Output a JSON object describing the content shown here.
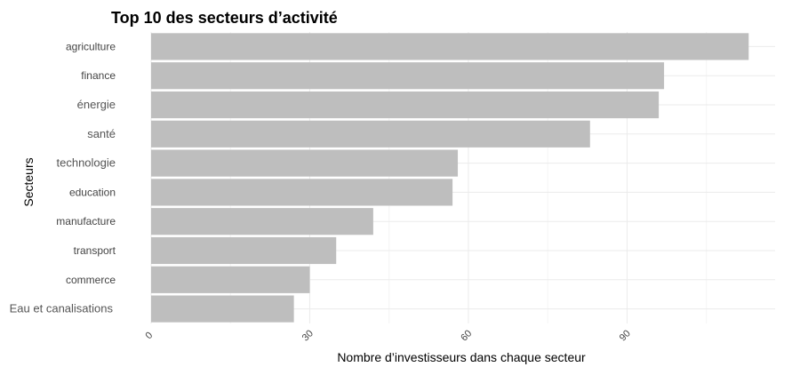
{
  "chart_data": {
    "type": "bar",
    "orientation": "horizontal",
    "title": "Top 10 des secteurs d’activité",
    "xlabel": "Nombre d’investisseurs dans chaque secteur",
    "ylabel": "Secteurs",
    "categories": [
      "agriculture",
      "finance",
      "énergie",
      "santé",
      "technologie",
      "education",
      "manufacture",
      "transport",
      "commerce",
      "Eau et canalisations"
    ],
    "values": [
      113,
      97,
      96,
      83,
      58,
      57,
      42,
      35,
      30,
      27
    ],
    "xlim": [
      0,
      118
    ],
    "xticks": [
      0,
      30,
      60,
      90
    ],
    "xtick_labels": [
      "0",
      "30",
      "60",
      "90"
    ],
    "bar_color": "#bebebe",
    "grid": true,
    "legend": "none"
  }
}
